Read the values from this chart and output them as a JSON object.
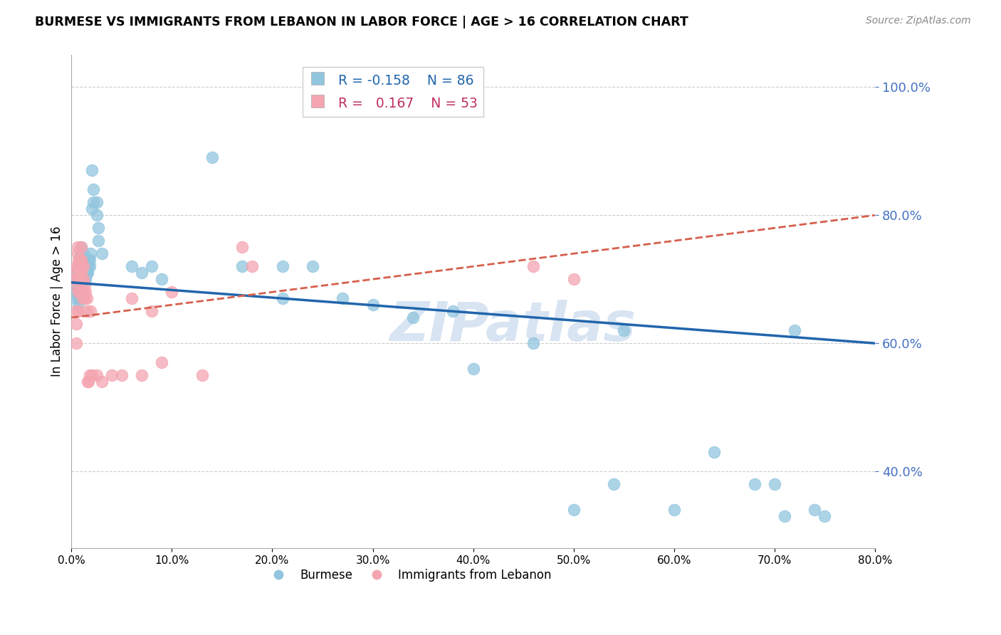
{
  "title": "BURMESE VS IMMIGRANTS FROM LEBANON IN LABOR FORCE | AGE > 16 CORRELATION CHART",
  "source": "Source: ZipAtlas.com",
  "ylabel": "In Labor Force | Age > 16",
  "xlim": [
    0.0,
    0.8
  ],
  "ylim": [
    0.28,
    1.05
  ],
  "yticks": [
    0.4,
    0.6,
    0.8,
    1.0
  ],
  "xticks": [
    0.0,
    0.1,
    0.2,
    0.3,
    0.4,
    0.5,
    0.6,
    0.7,
    0.8
  ],
  "blue_color": "#92c5de",
  "pink_color": "#f4a5b0",
  "blue_line_color": "#2166ac",
  "pink_line_color": "#d6604d",
  "legend_R_blue": "-0.158",
  "legend_N_blue": "86",
  "legend_R_pink": "0.167",
  "legend_N_pink": "53",
  "watermark": "ZIPatlas",
  "blue_trend_x0": 0.0,
  "blue_trend_y0": 0.695,
  "blue_trend_x1": 0.8,
  "blue_trend_y1": 0.6,
  "pink_trend_x0": 0.0,
  "pink_trend_y0": 0.64,
  "pink_trend_x1": 0.8,
  "pink_trend_y1": 0.8,
  "blue_x": [
    0.005,
    0.005,
    0.005,
    0.005,
    0.005,
    0.007,
    0.007,
    0.007,
    0.007,
    0.007,
    0.007,
    0.007,
    0.008,
    0.008,
    0.008,
    0.008,
    0.008,
    0.008,
    0.009,
    0.009,
    0.009,
    0.009,
    0.009,
    0.01,
    0.01,
    0.01,
    0.01,
    0.01,
    0.01,
    0.01,
    0.012,
    0.012,
    0.012,
    0.012,
    0.013,
    0.013,
    0.013,
    0.013,
    0.014,
    0.014,
    0.014,
    0.015,
    0.015,
    0.015,
    0.016,
    0.016,
    0.017,
    0.017,
    0.018,
    0.018,
    0.019,
    0.02,
    0.02,
    0.022,
    0.022,
    0.025,
    0.025,
    0.027,
    0.027,
    0.03,
    0.06,
    0.07,
    0.08,
    0.09,
    0.14,
    0.17,
    0.21,
    0.21,
    0.24,
    0.27,
    0.3,
    0.34,
    0.38,
    0.4,
    0.46,
    0.5,
    0.54,
    0.55,
    0.6,
    0.64,
    0.68,
    0.7,
    0.71,
    0.72,
    0.74,
    0.75
  ],
  "blue_y": [
    0.69,
    0.7,
    0.71,
    0.68,
    0.67,
    0.72,
    0.71,
    0.7,
    0.69,
    0.68,
    0.67,
    0.66,
    0.73,
    0.72,
    0.71,
    0.7,
    0.69,
    0.67,
    0.74,
    0.73,
    0.72,
    0.7,
    0.68,
    0.75,
    0.74,
    0.73,
    0.72,
    0.71,
    0.69,
    0.67,
    0.74,
    0.73,
    0.72,
    0.71,
    0.73,
    0.72,
    0.71,
    0.7,
    0.72,
    0.71,
    0.7,
    0.73,
    0.72,
    0.71,
    0.72,
    0.71,
    0.73,
    0.72,
    0.73,
    0.72,
    0.74,
    0.87,
    0.81,
    0.84,
    0.82,
    0.82,
    0.8,
    0.78,
    0.76,
    0.74,
    0.72,
    0.71,
    0.72,
    0.7,
    0.89,
    0.72,
    0.72,
    0.67,
    0.72,
    0.67,
    0.66,
    0.64,
    0.65,
    0.56,
    0.6,
    0.34,
    0.38,
    0.62,
    0.34,
    0.43,
    0.38,
    0.38,
    0.33,
    0.62,
    0.34,
    0.33
  ],
  "pink_x": [
    0.005,
    0.005,
    0.005,
    0.005,
    0.005,
    0.005,
    0.005,
    0.006,
    0.006,
    0.007,
    0.007,
    0.007,
    0.007,
    0.007,
    0.008,
    0.008,
    0.008,
    0.009,
    0.009,
    0.009,
    0.01,
    0.01,
    0.01,
    0.011,
    0.011,
    0.011,
    0.012,
    0.012,
    0.012,
    0.013,
    0.013,
    0.014,
    0.015,
    0.015,
    0.016,
    0.017,
    0.018,
    0.019,
    0.02,
    0.025,
    0.03,
    0.04,
    0.05,
    0.06,
    0.07,
    0.08,
    0.09,
    0.1,
    0.13,
    0.17,
    0.18,
    0.46,
    0.5
  ],
  "pink_y": [
    0.72,
    0.71,
    0.7,
    0.69,
    0.65,
    0.63,
    0.6,
    0.75,
    0.74,
    0.73,
    0.72,
    0.7,
    0.68,
    0.65,
    0.72,
    0.7,
    0.68,
    0.73,
    0.71,
    0.68,
    0.75,
    0.73,
    0.71,
    0.72,
    0.7,
    0.67,
    0.72,
    0.7,
    0.68,
    0.69,
    0.67,
    0.68,
    0.67,
    0.65,
    0.54,
    0.54,
    0.55,
    0.65,
    0.55,
    0.55,
    0.54,
    0.55,
    0.55,
    0.67,
    0.55,
    0.65,
    0.57,
    0.68,
    0.55,
    0.75,
    0.72,
    0.72,
    0.7
  ]
}
